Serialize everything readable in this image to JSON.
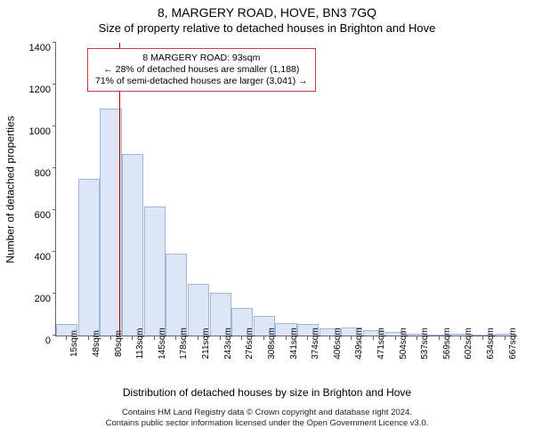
{
  "title_line1": "8, MARGERY ROAD, HOVE, BN3 7GQ",
  "title_line2": "Size of property relative to detached houses in Brighton and Hove",
  "ylabel": "Number of detached properties",
  "xaxis_title": "Distribution of detached houses by size in Brighton and Hove",
  "footer_line1": "Contains HM Land Registry data © Crown copyright and database right 2024.",
  "footer_line2": "Contains public sector information licensed under the Open Government Licence v3.0.",
  "note": {
    "line1": "8 MARGERY ROAD: 93sqm",
    "line2": "← 28% of detached houses are smaller (1,188)",
    "line3": "71% of semi-detached houses are larger (3,041) →"
  },
  "chart": {
    "type": "histogram",
    "background_color": "#ffffff",
    "axis_color": "#666666",
    "bar_fill": "#dce6f6",
    "bar_stroke": "#9fb6d9",
    "marker_color": "#b00000",
    "note_border": "#c04040",
    "title_fontsize": 14,
    "subtitle_fontsize": 13,
    "label_fontsize": 12,
    "tick_fontsize": 11,
    "xtick_fontsize": 10,
    "footer_fontsize": 9.5,
    "ylim": [
      0,
      1400
    ],
    "ytick_step": 200,
    "yticks": [
      0,
      200,
      400,
      600,
      800,
      1000,
      1200,
      1400
    ],
    "marker_x_value": 93,
    "x_start": 15,
    "x_step": 32.5,
    "bar_width_ratio": 0.98,
    "xticks_every": 1,
    "categories": [
      "15sqm",
      "48sqm",
      "80sqm",
      "113sqm",
      "145sqm",
      "178sqm",
      "211sqm",
      "243sqm",
      "276sqm",
      "308sqm",
      "341sqm",
      "374sqm",
      "406sqm",
      "439sqm",
      "471sqm",
      "504sqm",
      "537sqm",
      "569sqm",
      "602sqm",
      "634sqm",
      "667sqm"
    ],
    "values": [
      55,
      750,
      1085,
      870,
      615,
      390,
      245,
      205,
      130,
      95,
      60,
      55,
      35,
      40,
      25,
      15,
      8,
      6,
      10,
      5,
      8
    ]
  }
}
